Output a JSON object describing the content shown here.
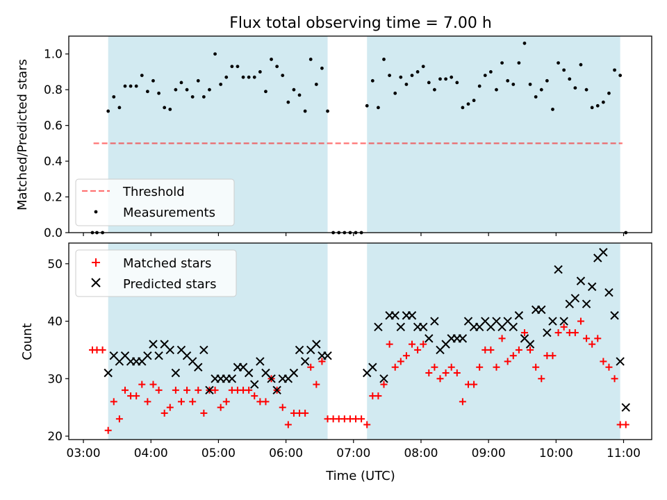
{
  "figure": {
    "title": "Flux total observing time = 7.00 h",
    "xlabel": "Time (UTC)",
    "x_ticks": [
      "03:00",
      "04:00",
      "05:00",
      "06:00",
      "07:00",
      "08:00",
      "09:00",
      "10:00",
      "11:00"
    ]
  },
  "colors": {
    "shade": "#add8e6",
    "threshold": "#ff0000",
    "measurements": "#000000",
    "matched": "#ff0000",
    "predicted": "#000000"
  },
  "chart_data": [
    {
      "type": "scatter",
      "panel": "top",
      "ylabel": "Matched/Predicted stars",
      "xlim": [
        "02:47",
        "11:25"
      ],
      "ylim": [
        0,
        1.1
      ],
      "y_ticks": [
        "0.0",
        "0.2",
        "0.4",
        "0.6",
        "0.8",
        "1.0"
      ],
      "shaded_intervals": [
        [
          "03:22",
          "06:37"
        ],
        [
          "07:12",
          "10:57"
        ]
      ],
      "legend": {
        "placement": "lower-left",
        "entries": [
          "Threshold",
          "Measurements"
        ]
      },
      "threshold": {
        "name": "Threshold",
        "style": "dashed",
        "value": 0.5,
        "x_range": [
          "03:09",
          "10:59"
        ]
      },
      "series": [
        {
          "name": "Measurements",
          "x": [
            "03:08",
            "03:12",
            "03:17",
            "03:22",
            "03:27",
            "03:32",
            "03:37",
            "03:42",
            "03:47",
            "03:52",
            "03:57",
            "04:02",
            "04:07",
            "04:12",
            "04:17",
            "04:22",
            "04:27",
            "04:32",
            "04:37",
            "04:42",
            "04:47",
            "04:52",
            "04:57",
            "05:02",
            "05:07",
            "05:12",
            "05:17",
            "05:22",
            "05:27",
            "05:32",
            "05:37",
            "05:42",
            "05:47",
            "05:52",
            "05:57",
            "06:02",
            "06:07",
            "06:12",
            "06:17",
            "06:22",
            "06:27",
            "06:32",
            "06:37",
            "06:42",
            "06:47",
            "06:52",
            "06:57",
            "07:02",
            "07:07",
            "07:12",
            "07:17",
            "07:22",
            "07:27",
            "07:32",
            "07:37",
            "07:42",
            "07:47",
            "07:52",
            "07:57",
            "08:02",
            "08:07",
            "08:12",
            "08:17",
            "08:22",
            "08:27",
            "08:32",
            "08:37",
            "08:42",
            "08:47",
            "08:52",
            "08:57",
            "09:02",
            "09:07",
            "09:12",
            "09:17",
            "09:22",
            "09:27",
            "09:32",
            "09:37",
            "09:42",
            "09:47",
            "09:52",
            "09:57",
            "10:02",
            "10:07",
            "10:12",
            "10:17",
            "10:22",
            "10:27",
            "10:32",
            "10:37",
            "10:42",
            "10:47",
            "10:52",
            "10:57",
            "11:02"
          ],
          "y": [
            0,
            0,
            0,
            0.68,
            0.76,
            0.7,
            0.82,
            0.82,
            0.82,
            0.88,
            0.79,
            0.85,
            0.78,
            0.7,
            0.69,
            0.8,
            0.84,
            0.8,
            0.76,
            0.85,
            0.76,
            0.8,
            1.0,
            0.83,
            0.87,
            0.93,
            0.93,
            0.87,
            0.87,
            0.87,
            0.9,
            0.79,
            0.97,
            0.93,
            0.88,
            0.73,
            0.8,
            0.77,
            0.68,
            0.97,
            0.83,
            0.92,
            0.68,
            0,
            0,
            0,
            0,
            0,
            0,
            0.71,
            0.85,
            0.7,
            0.97,
            0.88,
            0.78,
            0.87,
            0.83,
            0.88,
            0.9,
            0.93,
            0.84,
            0.8,
            0.86,
            0.86,
            0.87,
            0.84,
            0.7,
            0.72,
            0.74,
            0.82,
            0.88,
            0.9,
            0.8,
            0.95,
            0.85,
            0.83,
            0.95,
            1.06,
            0.83,
            0.76,
            0.8,
            0.85,
            0.69,
            0.95,
            0.91,
            0.86,
            0.81,
            0.94,
            0.8,
            0.7,
            0.71,
            0.73,
            0.78,
            0.91,
            0.88,
            0
          ]
        }
      ]
    },
    {
      "type": "scatter",
      "panel": "bottom",
      "ylabel": "Count",
      "xlim": [
        "02:47",
        "11:25"
      ],
      "ylim": [
        19.4,
        53.6
      ],
      "y_ticks": [
        "20",
        "30",
        "40",
        "50"
      ],
      "shaded_intervals": [
        [
          "03:22",
          "06:37"
        ],
        [
          "07:12",
          "10:57"
        ]
      ],
      "legend": {
        "placement": "upper-left",
        "entries": [
          "Matched stars",
          "Predicted stars"
        ]
      },
      "series": [
        {
          "name": "Matched stars",
          "marker": "plus",
          "x": [
            "03:08",
            "03:12",
            "03:17",
            "03:22",
            "03:27",
            "03:32",
            "03:37",
            "03:42",
            "03:47",
            "03:52",
            "03:57",
            "04:02",
            "04:07",
            "04:12",
            "04:17",
            "04:22",
            "04:27",
            "04:32",
            "04:37",
            "04:42",
            "04:47",
            "04:52",
            "04:57",
            "05:02",
            "05:07",
            "05:12",
            "05:17",
            "05:22",
            "05:27",
            "05:32",
            "05:37",
            "05:42",
            "05:47",
            "05:52",
            "05:57",
            "06:02",
            "06:07",
            "06:12",
            "06:17",
            "06:22",
            "06:27",
            "06:32",
            "06:37",
            "06:42",
            "06:47",
            "06:52",
            "06:57",
            "07:02",
            "07:07",
            "07:12",
            "07:17",
            "07:22",
            "07:27",
            "07:32",
            "07:37",
            "07:42",
            "07:47",
            "07:52",
            "07:57",
            "08:02",
            "08:07",
            "08:12",
            "08:17",
            "08:22",
            "08:27",
            "08:32",
            "08:37",
            "08:42",
            "08:47",
            "08:52",
            "08:57",
            "09:02",
            "09:07",
            "09:12",
            "09:17",
            "09:22",
            "09:27",
            "09:32",
            "09:37",
            "09:42",
            "09:47",
            "09:52",
            "09:57",
            "10:02",
            "10:07",
            "10:12",
            "10:17",
            "10:22",
            "10:27",
            "10:32",
            "10:37",
            "10:42",
            "10:47",
            "10:52",
            "10:57",
            "11:02"
          ],
          "y": [
            35,
            35,
            35,
            21,
            26,
            23,
            28,
            27,
            27,
            29,
            26,
            29,
            28,
            24,
            25,
            28,
            26,
            28,
            26,
            28,
            24,
            28,
            28,
            25,
            26,
            28,
            28,
            28,
            28,
            27,
            26,
            26,
            30,
            28,
            25,
            22,
            24,
            24,
            24,
            32,
            29,
            33,
            23,
            23,
            23,
            23,
            23,
            23,
            23,
            22,
            27,
            27,
            29,
            36,
            32,
            33,
            34,
            36,
            35,
            36,
            31,
            32,
            30,
            31,
            32,
            31,
            26,
            29,
            29,
            32,
            35,
            35,
            32,
            37,
            33,
            34,
            35,
            38,
            35,
            32,
            30,
            34,
            34,
            38,
            39,
            38,
            38,
            40,
            37,
            36,
            37,
            33,
            32,
            30,
            22,
            22
          ]
        },
        {
          "name": "Predicted stars",
          "marker": "x",
          "x": [
            "03:22",
            "03:27",
            "03:32",
            "03:37",
            "03:42",
            "03:47",
            "03:52",
            "03:57",
            "04:02",
            "04:07",
            "04:12",
            "04:17",
            "04:22",
            "04:27",
            "04:32",
            "04:37",
            "04:42",
            "04:47",
            "04:52",
            "04:57",
            "05:02",
            "05:07",
            "05:12",
            "05:17",
            "05:22",
            "05:27",
            "05:32",
            "05:37",
            "05:42",
            "05:47",
            "05:52",
            "05:57",
            "06:02",
            "06:07",
            "06:12",
            "06:17",
            "06:22",
            "06:27",
            "06:32",
            "06:37",
            "07:12",
            "07:17",
            "07:22",
            "07:27",
            "07:32",
            "07:37",
            "07:42",
            "07:47",
            "07:52",
            "07:57",
            "08:02",
            "08:07",
            "08:12",
            "08:17",
            "08:22",
            "08:27",
            "08:32",
            "08:37",
            "08:42",
            "08:47",
            "08:52",
            "08:57",
            "09:02",
            "09:07",
            "09:12",
            "09:17",
            "09:22",
            "09:27",
            "09:32",
            "09:37",
            "09:42",
            "09:47",
            "09:52",
            "09:57",
            "10:02",
            "10:07",
            "10:12",
            "10:17",
            "10:22",
            "10:27",
            "10:32",
            "10:37",
            "10:42",
            "10:47",
            "10:52",
            "10:57",
            "11:02"
          ],
          "y": [
            31,
            34,
            33,
            34,
            33,
            33,
            33,
            34,
            36,
            34,
            36,
            35,
            31,
            35,
            34,
            33,
            32,
            35,
            28,
            30,
            30,
            30,
            30,
            32,
            32,
            31,
            29,
            33,
            31,
            30,
            28,
            30,
            30,
            31,
            35,
            33,
            35,
            36,
            34,
            34,
            31,
            32,
            39,
            30,
            41,
            41,
            39,
            41,
            41,
            39,
            39,
            37,
            40,
            35,
            36,
            37,
            37,
            37,
            40,
            39,
            39,
            40,
            39,
            40,
            39,
            40,
            39,
            41,
            37,
            36,
            42,
            42,
            38,
            40,
            49,
            40,
            43,
            44,
            47,
            43,
            46,
            51,
            52,
            45,
            41,
            33,
            25
          ]
        }
      ]
    }
  ]
}
